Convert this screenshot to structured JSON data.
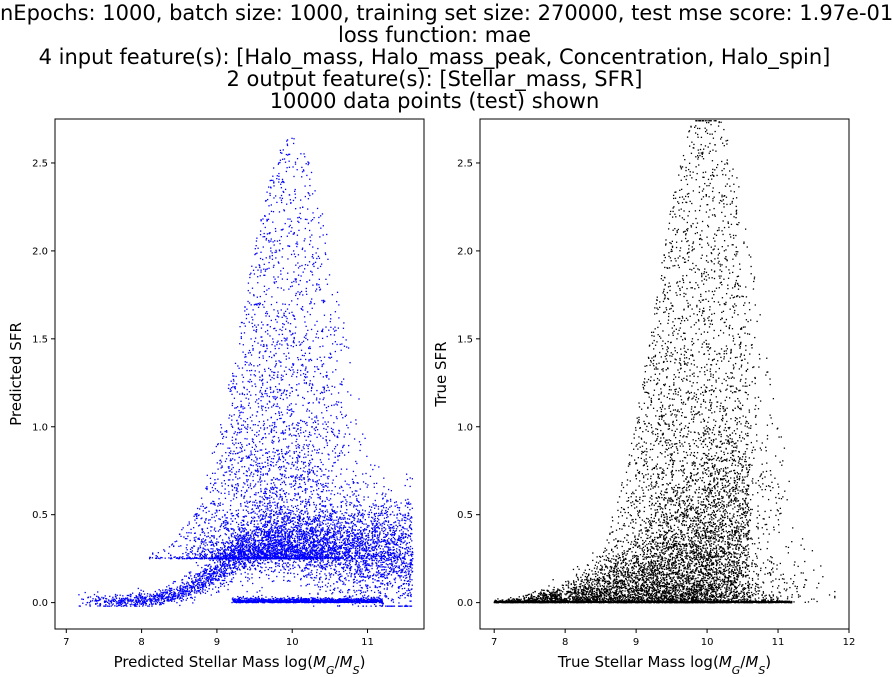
{
  "figure": {
    "title_lines": [
      "nEpochs: 1000, batch size: 1000, training set size: 270000, test mse score: 1.97e-01",
      "loss function: mae",
      "4 input feature(s): [Halo_mass, Halo_mass_peak, Concentration, Halo_spin]",
      "2 output feature(s): [Stellar_mass, SFR]",
      "10000 data points (test) shown"
    ]
  },
  "chart_data": [
    {
      "type": "scatter",
      "series": [
        {
          "color": "#0000ff",
          "n_points": 10000
        }
      ],
      "xlabel": "Predicted Stellar Mass log(M_G/M_S)",
      "xlabel_parts": {
        "prefix": "Predicted Stellar Mass log(",
        "var1": "M",
        "sub1": "G",
        "slash": "/",
        "var2": "M",
        "sub2": "S",
        "suffix": ")"
      },
      "ylabel": "Predicted SFR",
      "xlim": [
        6.85,
        11.75
      ],
      "ylim": [
        -0.15,
        2.75
      ],
      "xticks": [
        7,
        8,
        9,
        10,
        11
      ],
      "xtick_labels": [
        "7",
        "8",
        "9",
        "10",
        "11"
      ],
      "yticks": [
        0.0,
        0.5,
        1.0,
        1.5,
        2.0,
        2.5
      ],
      "ytick_labels": [
        "0.0",
        "0.5",
        "1.0",
        "1.5",
        "2.0",
        "2.5"
      ],
      "distribution": {
        "x_range": [
          7.1,
          11.6
        ],
        "baseline_band": {
          "y": 0.0,
          "x_range": [
            9.2,
            11.2
          ]
        },
        "plateau": {
          "y": 0.35,
          "x_range": [
            9.3,
            11.5
          ]
        },
        "max_y": 2.63,
        "max_y_x": 10.0
      }
    },
    {
      "type": "scatter",
      "series": [
        {
          "color": "#000000",
          "n_points": 10000
        }
      ],
      "xlabel": "True Stellar Mass log(M_G/M_S)",
      "xlabel_parts": {
        "prefix": "True Stellar Mass log(",
        "var1": "M",
        "sub1": "G",
        "slash": "/",
        "var2": "M",
        "sub2": "S",
        "suffix": ")"
      },
      "ylabel": "True SFR",
      "xlim": [
        6.8,
        12.0
      ],
      "ylim": [
        -0.15,
        2.75
      ],
      "xticks": [
        7,
        8,
        9,
        10,
        11,
        12
      ],
      "xtick_labels": [
        "7",
        "8",
        "9",
        "10",
        "11",
        "12"
      ],
      "yticks": [
        0.0,
        0.5,
        1.0,
        1.5,
        2.0,
        2.5
      ],
      "ytick_labels": [
        "0.0",
        "0.5",
        "1.0",
        "1.5",
        "2.0",
        "2.5"
      ],
      "distribution": {
        "x_range": [
          7.0,
          11.8
        ],
        "zero_line": {
          "y": 0.0,
          "x_range": [
            7.0,
            11.2
          ]
        },
        "dense_core": {
          "x": 9.8,
          "y": 0.45
        },
        "max_y": 2.75
      }
    }
  ]
}
